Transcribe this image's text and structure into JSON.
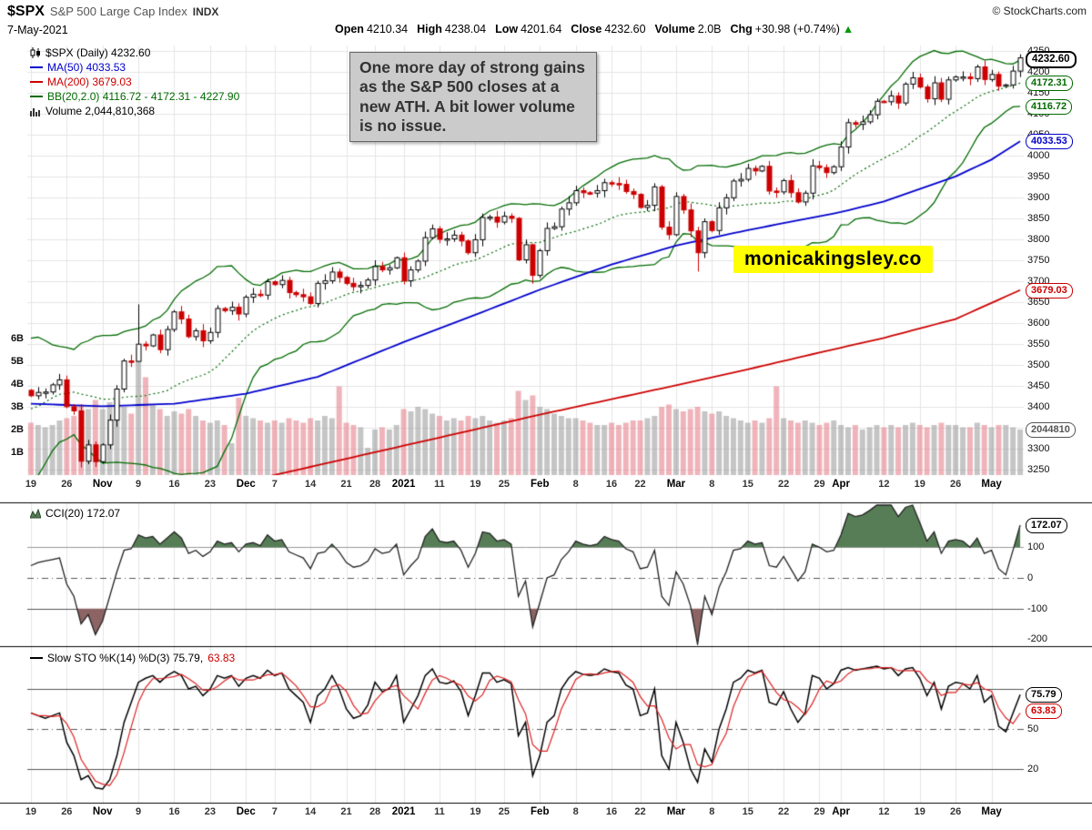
{
  "header": {
    "symbol": "$SPX",
    "name": "S&P 500 Large Cap Index",
    "exchange": "INDX",
    "copyright": "© StockCharts.com",
    "date": "7-May-2021",
    "quote": {
      "open_label": "Open",
      "open": "4210.34",
      "high_label": "High",
      "high": "4238.04",
      "low_label": "Low",
      "low": "4201.64",
      "close_label": "Close",
      "close": "4232.60",
      "volume_label": "Volume",
      "volume": "2.0B",
      "chg_label": "Chg",
      "chg": "+30.98 (+0.74%)",
      "chg_arrow": "▲"
    }
  },
  "legend": {
    "main": "$SPX (Daily) 4232.60",
    "ma50": "MA(50) 4033.53",
    "ma200": "MA(200) 3679.03",
    "bb": "BB(20,2.0) 4116.72 - 4172.31 - 4227.90",
    "volume": "Volume 2,044,810,368",
    "cci": "CCI(20) 172.07",
    "sto": "Slow STO %K(14) %D(3) 75.79,",
    "sto_d": "63.83"
  },
  "annotation": {
    "text": "One more day of strong gains as the S&P 500 closes at a new ATH. A bit lower volume is no issue."
  },
  "watermark": {
    "text": "monicakingsley.co",
    "bg": "#ffff00"
  },
  "colors": {
    "up_candle": "#000000",
    "down_candle": "#cc0000",
    "ma50": "#0000cc",
    "ma200": "#cc0000",
    "bb": "#006b00",
    "vol_up": "rgba(150,150,150,0.55)",
    "vol_down": "rgba(228,130,140,0.6)",
    "cci_fill_high": "#567d56",
    "cci_fill_low": "#8d6464",
    "sto_k": "#000000",
    "sto_d": "#dd2222",
    "arrow_up": "#009900",
    "watermark_bg": "#ffff00"
  },
  "axis": {
    "price_ticks": [
      4250,
      4200,
      4150,
      4100,
      4050,
      4000,
      3950,
      3900,
      3850,
      3800,
      3750,
      3700,
      3650,
      3600,
      3550,
      3500,
      3450,
      3400,
      3350,
      3300,
      3250
    ],
    "volume_ticks": [
      "6B",
      "5B",
      "4B",
      "3B",
      "2B",
      "1B"
    ],
    "cci_ticks": [
      100,
      0,
      -100,
      -200
    ],
    "sto_ticks": [
      50,
      20
    ],
    "x_ticks": [
      {
        "l": "19",
        "i": 0
      },
      {
        "l": "26",
        "i": 5
      },
      {
        "l": "Nov",
        "i": 10,
        "b": 1
      },
      {
        "l": "9",
        "i": 15
      },
      {
        "l": "16",
        "i": 20
      },
      {
        "l": "23",
        "i": 25
      },
      {
        "l": "Dec",
        "i": 30,
        "b": 1
      },
      {
        "l": "7",
        "i": 34
      },
      {
        "l": "14",
        "i": 39
      },
      {
        "l": "21",
        "i": 44
      },
      {
        "l": "28",
        "i": 48
      },
      {
        "l": "2021",
        "i": 52,
        "b": 1
      },
      {
        "l": "11",
        "i": 57
      },
      {
        "l": "19",
        "i": 62
      },
      {
        "l": "25",
        "i": 66
      },
      {
        "l": "Feb",
        "i": 71,
        "b": 1
      },
      {
        "l": "8",
        "i": 76
      },
      {
        "l": "16",
        "i": 81
      },
      {
        "l": "22",
        "i": 85
      },
      {
        "l": "Mar",
        "i": 90,
        "b": 1
      },
      {
        "l": "8",
        "i": 95
      },
      {
        "l": "15",
        "i": 100
      },
      {
        "l": "22",
        "i": 105
      },
      {
        "l": "29",
        "i": 110
      },
      {
        "l": "Apr",
        "i": 113,
        "b": 1
      },
      {
        "l": "12",
        "i": 119
      },
      {
        "l": "19",
        "i": 124
      },
      {
        "l": "26",
        "i": 129
      },
      {
        "l": "May",
        "i": 134,
        "b": 1
      }
    ],
    "bubbles": [
      {
        "name": "last-price-bubble",
        "text": "4232.60",
        "value": 4232.6,
        "panel": "price",
        "color": "#000000",
        "thick": true
      },
      {
        "name": "bb-mid-bubble",
        "text": "4172.31",
        "value": 4172.31,
        "panel": "price",
        "color": "#006b00"
      },
      {
        "name": "bb-lower-bubble",
        "text": "4116.72",
        "value": 4116.72,
        "panel": "price",
        "color": "#006b00"
      },
      {
        "name": "ma50-bubble",
        "text": "4033.53",
        "value": 4033.53,
        "panel": "price",
        "color": "#0000cc"
      },
      {
        "name": "ma200-bubble",
        "text": "3679.03",
        "value": 3679.03,
        "panel": "price",
        "color": "#cc0000"
      },
      {
        "name": "volume-bubble",
        "text": "2044810",
        "value": 2.0,
        "panel": "volume",
        "color": "#555555"
      },
      {
        "name": "cci-bubble",
        "text": "172.07",
        "value": 172.07,
        "panel": "cci",
        "color": "#000000"
      },
      {
        "name": "sto-k-bubble",
        "text": "75.79",
        "value": 75.79,
        "panel": "sto",
        "color": "#000000"
      },
      {
        "name": "sto-d-bubble",
        "text": "63.83",
        "value": 63.83,
        "panel": "sto",
        "color": "#cc0000"
      }
    ]
  },
  "chart_data": [
    {
      "type": "candlestick",
      "title": "$SPX (Daily)",
      "ylim": [
        3238,
        4262
      ],
      "first_open": 3440,
      "close": [
        3427,
        3435,
        3436,
        3453,
        3465,
        3401,
        3391,
        3271,
        3310,
        3270,
        3310,
        3369,
        3443,
        3510,
        3509,
        3550,
        3546,
        3572,
        3537,
        3585,
        3627,
        3610,
        3568,
        3582,
        3558,
        3578,
        3635,
        3630,
        3638,
        3622,
        3662,
        3669,
        3667,
        3699,
        3692,
        3702,
        3673,
        3668,
        3663,
        3647,
        3695,
        3701,
        3722,
        3709,
        3695,
        3687,
        3690,
        3703,
        3735,
        3727,
        3732,
        3756,
        3701,
        3727,
        3748,
        3804,
        3825,
        3800,
        3801,
        3810,
        3796,
        3768,
        3799,
        3852,
        3853,
        3841,
        3855,
        3850,
        3751,
        3787,
        3714,
        3773,
        3826,
        3830,
        3872,
        3887,
        3916,
        3911,
        3910,
        3916,
        3935,
        3933,
        3931,
        3914,
        3907,
        3876,
        3881,
        3925,
        3829,
        3811,
        3902,
        3870,
        3820,
        3768,
        3842,
        3821,
        3875,
        3899,
        3939,
        3943,
        3969,
        3963,
        3974,
        3915,
        3913,
        3940,
        3911,
        3889,
        3910,
        3975,
        3971,
        3959,
        3973,
        4020,
        4078,
        4074,
        4080,
        4097,
        4129,
        4128,
        4142,
        4125,
        4170,
        4185,
        4163,
        4135,
        4173,
        4134,
        4180,
        4187,
        4187,
        4183,
        4211,
        4181,
        4193,
        4165,
        4168,
        4201,
        4232.6
      ],
      "volume_billions": [
        2.3,
        2.2,
        2.1,
        2.2,
        2.4,
        2.5,
        2.6,
        3.1,
        2.9,
        3.3,
        2.9,
        3.2,
        3.3,
        3.0,
        2.7,
        5.6,
        4.3,
        3.1,
        2.9,
        2.6,
        2.8,
        2.7,
        2.9,
        2.6,
        2.4,
        2.3,
        2.4,
        2.2,
        1.4,
        3.4,
        2.6,
        2.5,
        2.4,
        2.3,
        2.4,
        2.3,
        2.5,
        2.4,
        2.3,
        2.5,
        2.4,
        2.6,
        2.5,
        3.9,
        2.3,
        2.2,
        2.1,
        1.2,
        2.0,
        2.1,
        2.0,
        2.2,
        2.9,
        2.8,
        3.0,
        2.9,
        2.7,
        2.6,
        2.4,
        2.5,
        2.4,
        2.6,
        2.5,
        2.6,
        2.4,
        2.3,
        2.4,
        2.5,
        3.7,
        3.3,
        3.5,
        3.0,
        2.9,
        2.7,
        2.6,
        2.5,
        2.5,
        2.4,
        2.3,
        2.2,
        2.2,
        2.3,
        2.2,
        2.3,
        2.4,
        2.4,
        2.5,
        2.6,
        3.0,
        3.1,
        2.9,
        2.8,
        2.9,
        3.0,
        2.8,
        2.7,
        2.8,
        2.6,
        2.5,
        2.4,
        2.3,
        2.4,
        2.3,
        2.5,
        3.9,
        2.5,
        2.4,
        2.3,
        2.4,
        2.3,
        2.2,
        2.3,
        2.4,
        2.2,
        2.1,
        2.2,
        2.0,
        2.1,
        2.2,
        2.1,
        2.2,
        2.1,
        2.2,
        2.3,
        2.2,
        2.1,
        2.2,
        2.3,
        2.2,
        2.2,
        2.1,
        2.1,
        2.3,
        2.2,
        2.1,
        2.2,
        2.2,
        2.1,
        2.0
      ],
      "prehistory_close": [
        3281,
        3316,
        3237,
        3247,
        3298,
        3352,
        3335,
        3363,
        3381,
        3348,
        3409,
        3361,
        3419,
        3447,
        3477,
        3534,
        3512,
        3489,
        3483,
        3484
      ],
      "ma50_anchors": [
        [
          0,
          3408
        ],
        [
          10,
          3402
        ],
        [
          20,
          3408
        ],
        [
          30,
          3432
        ],
        [
          40,
          3472
        ],
        [
          52,
          3555
        ],
        [
          62,
          3620
        ],
        [
          71,
          3680
        ],
        [
          81,
          3740
        ],
        [
          90,
          3785
        ],
        [
          100,
          3822
        ],
        [
          110,
          3855
        ],
        [
          113,
          3865
        ],
        [
          119,
          3890
        ],
        [
          124,
          3920
        ],
        [
          129,
          3950
        ],
        [
          134,
          3990
        ],
        [
          138,
          4033.53
        ]
      ],
      "ma200_anchors": [
        [
          0,
          3100
        ],
        [
          20,
          3185
        ],
        [
          35,
          3242
        ],
        [
          52,
          3308
        ],
        [
          71,
          3382
        ],
        [
          90,
          3452
        ],
        [
          100,
          3490
        ],
        [
          110,
          3530
        ],
        [
          119,
          3565
        ],
        [
          129,
          3610
        ],
        [
          138,
          3679.03
        ]
      ],
      "wick_overrides": {
        "15": [
          3645,
          3541
        ],
        "70": [
          3790,
          3694
        ],
        "93": [
          3830,
          3723
        ]
      },
      "indicators": {
        "ma50": 4033.53,
        "ma200": 3679.03,
        "bb_lower": 4116.72,
        "bb_mid": 4172.31,
        "bb_upper": 4227.9,
        "volume_last": "2,044,810,368"
      }
    },
    {
      "type": "area-line",
      "name": "CCI(20)",
      "last": 172.07,
      "ref_lines": [
        100,
        0,
        -100
      ],
      "values": [
        40,
        50,
        55,
        60,
        65,
        -20,
        -60,
        -150,
        -120,
        -185,
        -140,
        -60,
        20,
        90,
        95,
        140,
        130,
        135,
        110,
        130,
        150,
        130,
        80,
        90,
        70,
        85,
        120,
        110,
        115,
        85,
        110,
        115,
        105,
        140,
        120,
        125,
        85,
        75,
        65,
        30,
        80,
        85,
        110,
        85,
        50,
        35,
        40,
        55,
        95,
        80,
        85,
        110,
        10,
        40,
        65,
        135,
        160,
        120,
        115,
        120,
        90,
        35,
        80,
        150,
        145,
        120,
        125,
        110,
        -60,
        -10,
        -160,
        -80,
        0,
        10,
        60,
        85,
        120,
        110,
        105,
        110,
        135,
        125,
        120,
        95,
        85,
        30,
        35,
        90,
        -60,
        -90,
        20,
        -20,
        -90,
        -240,
        -60,
        -120,
        -30,
        20,
        90,
        95,
        120,
        110,
        115,
        40,
        35,
        70,
        30,
        -10,
        20,
        110,
        100,
        85,
        90,
        140,
        210,
        200,
        205,
        220,
        280,
        260,
        250,
        200,
        230,
        240,
        180,
        120,
        150,
        80,
        120,
        125,
        120,
        100,
        130,
        80,
        90,
        30,
        10,
        90,
        172.07
      ]
    },
    {
      "type": "line",
      "name": "Slow Stochastic",
      "k_period": 14,
      "d_period": 3,
      "k_last": 75.79,
      "d_last": 63.83,
      "ref_lines": [
        80,
        50,
        20
      ],
      "k_values": [
        62,
        60,
        58,
        60,
        62,
        40,
        30,
        12,
        15,
        6,
        5,
        12,
        30,
        55,
        70,
        85,
        88,
        90,
        85,
        90,
        93,
        90,
        80,
        82,
        75,
        80,
        90,
        88,
        90,
        82,
        88,
        90,
        88,
        94,
        90,
        92,
        80,
        75,
        70,
        55,
        75,
        80,
        90,
        80,
        65,
        58,
        60,
        68,
        85,
        78,
        80,
        90,
        55,
        65,
        75,
        90,
        95,
        85,
        84,
        86,
        78,
        60,
        75,
        92,
        92,
        85,
        87,
        84,
        45,
        55,
        15,
        30,
        55,
        60,
        80,
        88,
        93,
        91,
        90,
        91,
        95,
        93,
        92,
        83,
        80,
        60,
        62,
        80,
        30,
        20,
        55,
        40,
        20,
        10,
        35,
        25,
        50,
        65,
        85,
        88,
        94,
        92,
        94,
        70,
        68,
        78,
        65,
        55,
        62,
        90,
        88,
        80,
        84,
        94,
        96,
        94,
        95,
        96,
        97,
        95,
        96,
        90,
        95,
        96,
        88,
        75,
        85,
        65,
        82,
        85,
        84,
        80,
        90,
        70,
        75,
        52,
        48,
        62,
        75.79
      ]
    }
  ]
}
